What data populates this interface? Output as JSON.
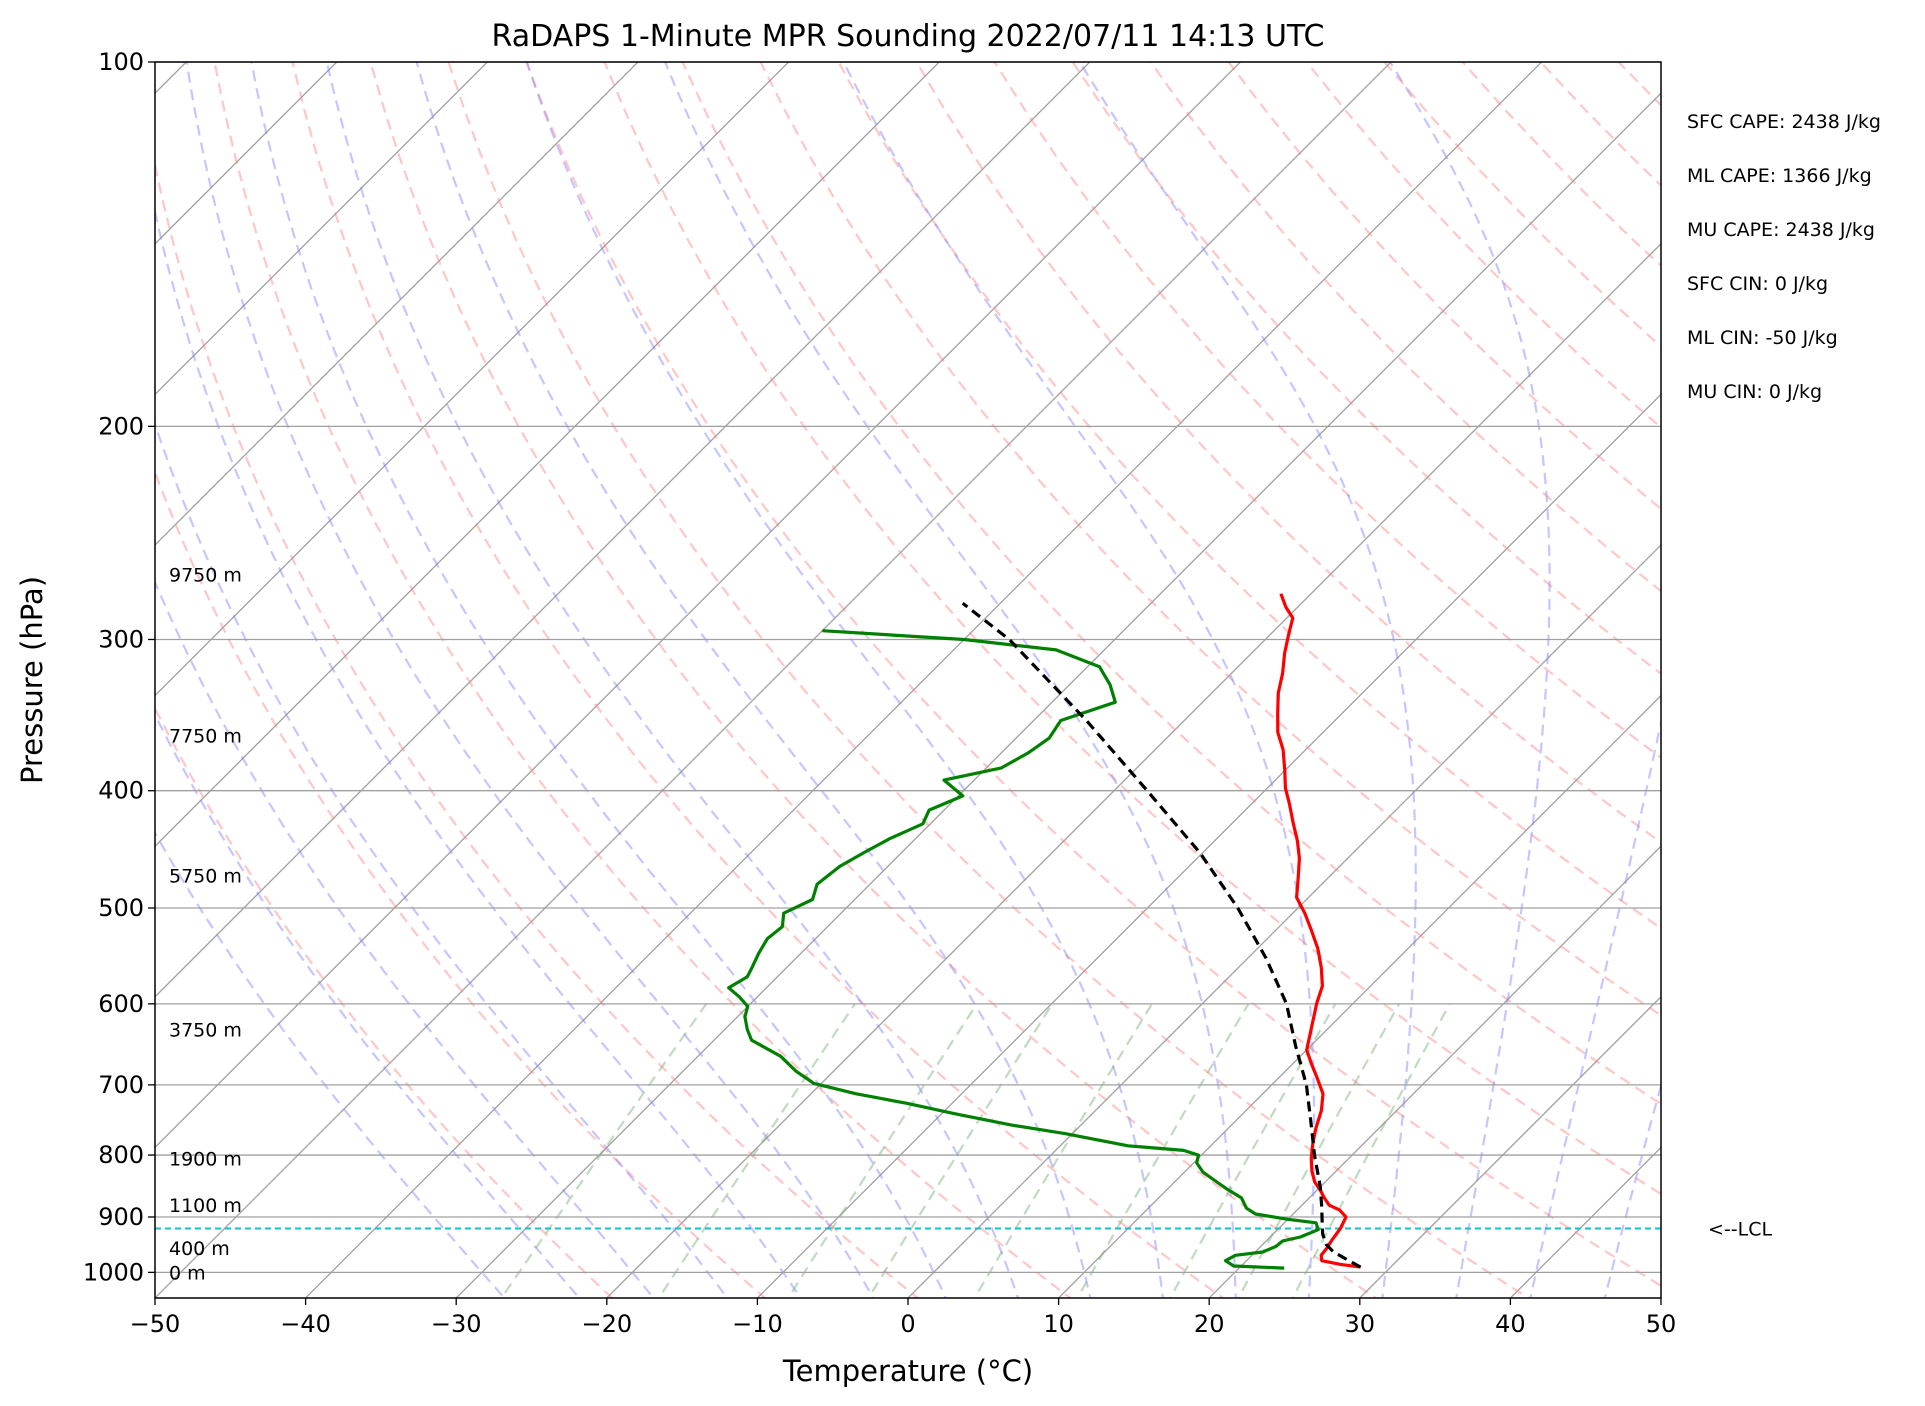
{
  "chart_data": {
    "type": "line",
    "subtype": "skew-T log-P sounding",
    "title": "RaDAPS 1-Minute MPR Sounding 2022/07/11 14:13 UTC",
    "xlabel": "Temperature (°C)",
    "ylabel": "Pressure (hPa)",
    "xlim": [
      -50,
      50
    ],
    "ylim": [
      1050,
      100
    ],
    "y_scale": "log",
    "x_ticks": [
      -50,
      -40,
      -30,
      -20,
      -10,
      0,
      10,
      20,
      30,
      40,
      50
    ],
    "x_tick_labels": [
      "−50",
      "−40",
      "−30",
      "−20",
      "−10",
      "0",
      "10",
      "20",
      "30",
      "40",
      "50"
    ],
    "y_ticks": [
      1000,
      900,
      800,
      700,
      600,
      500,
      400,
      300,
      200,
      100
    ],
    "y_tick_labels": [
      "1000",
      "900",
      "800",
      "700",
      "600",
      "500",
      "400",
      "300",
      "200",
      "100"
    ],
    "grid": true,
    "colors": {
      "temperature": "#ff0000",
      "dewpoint": "#008000",
      "parcel": "#000000",
      "dry_adiabats": "#ff8080",
      "moist_adiabats": "#8080ff",
      "mixing_ratio": "#70b070",
      "isotherms": "#a0a0a0",
      "lcl_line": "#17becf"
    },
    "series": [
      {
        "role": "temperature",
        "style": "solid",
        "points": [
          [
            28.0,
            990
          ],
          [
            26.5,
            985
          ],
          [
            25.0,
            978
          ],
          [
            24.6,
            968
          ],
          [
            24.5,
            955
          ],
          [
            24.3,
            940
          ],
          [
            24.1,
            920
          ],
          [
            23.7,
            900
          ],
          [
            22.8,
            888
          ],
          [
            21.8,
            880
          ],
          [
            21.0,
            868
          ],
          [
            20.2,
            855
          ],
          [
            19.3,
            842
          ],
          [
            18.4,
            825
          ],
          [
            17.5,
            805
          ],
          [
            16.6,
            782
          ],
          [
            15.8,
            760
          ],
          [
            15.0,
            735
          ],
          [
            14.0,
            712
          ],
          [
            12.5,
            690
          ],
          [
            11.2,
            672
          ],
          [
            10.0,
            655
          ],
          [
            8.5,
            620
          ],
          [
            7.6,
            600
          ],
          [
            6.8,
            580
          ],
          [
            5.5,
            560
          ],
          [
            4.0,
            540
          ],
          [
            2.4,
            522
          ],
          [
            0.8,
            505
          ],
          [
            -0.8,
            490
          ],
          [
            -2.0,
            472
          ],
          [
            -3.2,
            455
          ],
          [
            -4.5,
            440
          ],
          [
            -6.0,
            425
          ],
          [
            -7.5,
            410
          ],
          [
            -8.8,
            398
          ],
          [
            -10.0,
            385
          ],
          [
            -11.5,
            370
          ],
          [
            -13.0,
            358
          ],
          [
            -14.3,
            345
          ],
          [
            -15.6,
            332
          ],
          [
            -16.6,
            320
          ],
          [
            -17.8,
            308
          ],
          [
            -18.8,
            297
          ],
          [
            -19.6,
            288
          ],
          [
            -20.8,
            282
          ],
          [
            -22.0,
            275
          ]
        ]
      },
      {
        "role": "dewpoint",
        "style": "solid",
        "points": [
          [
            23.0,
            992
          ],
          [
            19.5,
            988
          ],
          [
            18.6,
            978
          ],
          [
            18.9,
            968
          ],
          [
            20.5,
            962
          ],
          [
            21.0,
            952
          ],
          [
            21.1,
            942
          ],
          [
            22.0,
            935
          ],
          [
            22.7,
            922
          ],
          [
            22.1,
            910
          ],
          [
            20.0,
            904
          ],
          [
            17.5,
            895
          ],
          [
            16.5,
            885
          ],
          [
            15.5,
            868
          ],
          [
            13.8,
            852
          ],
          [
            12.4,
            838
          ],
          [
            11.2,
            826
          ],
          [
            10.2,
            812
          ],
          [
            9.8,
            800
          ],
          [
            8.5,
            793
          ],
          [
            4.5,
            786
          ],
          [
            -0.5,
            768
          ],
          [
            -4.5,
            756
          ],
          [
            -9.0,
            740
          ],
          [
            -13.0,
            725
          ],
          [
            -17.0,
            712
          ],
          [
            -20.5,
            698
          ],
          [
            -22.5,
            682
          ],
          [
            -24.5,
            663
          ],
          [
            -27.5,
            643
          ],
          [
            -28.5,
            630
          ],
          [
            -29.5,
            615
          ],
          [
            -30.0,
            603
          ],
          [
            -31.2,
            592
          ],
          [
            -32.5,
            582
          ],
          [
            -32.0,
            570
          ],
          [
            -32.3,
            560
          ],
          [
            -32.8,
            545
          ],
          [
            -33.2,
            530
          ],
          [
            -33.0,
            518
          ],
          [
            -33.8,
            505
          ],
          [
            -32.8,
            492
          ],
          [
            -33.5,
            478
          ],
          [
            -33.2,
            462
          ],
          [
            -32.5,
            450
          ],
          [
            -31.7,
            438
          ],
          [
            -30.5,
            426
          ],
          [
            -31.0,
            415
          ],
          [
            -29.7,
            404
          ],
          [
            -32.0,
            392
          ],
          [
            -29.0,
            383
          ],
          [
            -28.2,
            372
          ],
          [
            -27.8,
            362
          ],
          [
            -28.2,
            350
          ],
          [
            -25.8,
            338
          ],
          [
            -27.3,
            327
          ],
          [
            -29.2,
            316
          ],
          [
            -33.2,
            306
          ],
          [
            -40.0,
            300
          ],
          [
            -50.0,
            295
          ]
        ]
      },
      {
        "role": "parcel",
        "style": "dashed",
        "points": [
          [
            28.0,
            990
          ],
          [
            26.5,
            975
          ],
          [
            25.2,
            962
          ],
          [
            24.2,
            948
          ],
          [
            23.3,
            930
          ],
          [
            22.9,
            920
          ],
          [
            21.3,
            880
          ],
          [
            20.0,
            850
          ],
          [
            17.5,
            800
          ],
          [
            15.0,
            750
          ],
          [
            12.3,
            700
          ],
          [
            9.0,
            650
          ],
          [
            5.6,
            600
          ],
          [
            1.2,
            550
          ],
          [
            -4.0,
            500
          ],
          [
            -10.2,
            450
          ],
          [
            -17.8,
            400
          ],
          [
            -26.5,
            350
          ],
          [
            -37.0,
            300
          ],
          [
            -42.5,
            280
          ]
        ]
      }
    ],
    "lcl": {
      "pressure": 920,
      "label": "<--LCL"
    },
    "height_labels": [
      {
        "text": "0 m",
        "pressure": 1000
      },
      {
        "text": "400 m",
        "pressure": 955
      },
      {
        "text": "1100 m",
        "pressure": 880
      },
      {
        "text": "1900 m",
        "pressure": 805
      },
      {
        "text": "3750 m",
        "pressure": 630
      },
      {
        "text": "5750 m",
        "pressure": 470
      },
      {
        "text": "7750 m",
        "pressure": 360
      },
      {
        "text": "9750 m",
        "pressure": 265
      }
    ],
    "annotations": [
      "SFC CAPE: 2438 J/kg",
      "ML CAPE: 1366 J/kg",
      "MU CAPE: 2438 J/kg",
      "SFC CIN: 0 J/kg",
      "ML CIN: -50 J/kg",
      "MU CIN: 0 J/kg"
    ],
    "dry_adiabat_thetas_K": [
      250,
      260,
      270,
      280,
      290,
      300,
      310,
      320,
      330,
      340,
      350,
      360,
      370,
      380,
      390,
      400,
      410,
      420,
      430,
      440,
      450,
      460,
      470,
      480,
      490,
      500,
      510,
      520,
      530,
      540,
      550,
      560,
      570,
      580,
      590,
      600,
      610,
      620,
      630,
      640,
      650,
      660,
      670,
      680,
      690,
      700
    ],
    "moist_adiabat_start_temps_C": [
      -30,
      -25,
      -20,
      -15,
      -10,
      -5,
      0,
      5,
      10,
      15,
      20,
      25,
      30,
      35,
      40,
      45,
      50,
      55
    ],
    "mixing_ratio_values_gkg": [
      0.4,
      1,
      2,
      3,
      5,
      8,
      12,
      16,
      20
    ]
  }
}
